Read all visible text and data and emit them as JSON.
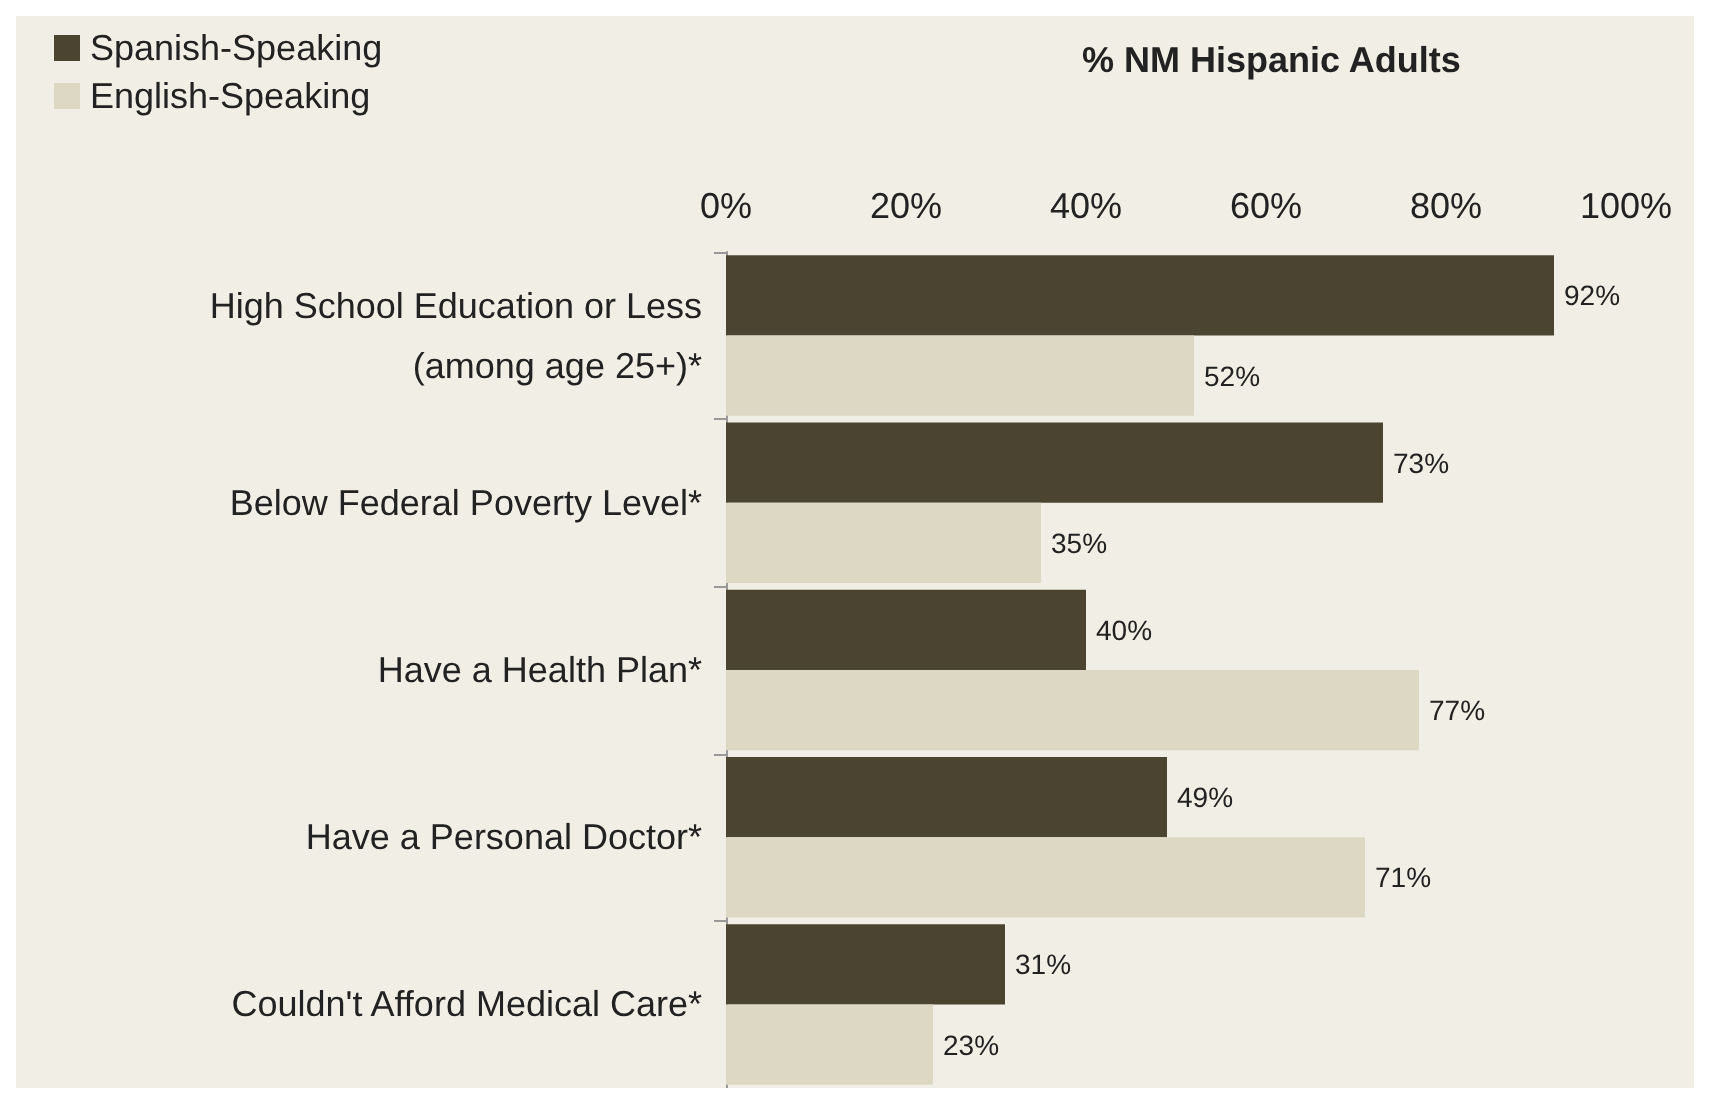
{
  "chart_data": {
    "type": "bar",
    "orientation": "horizontal",
    "title": "% NM Hispanic Adults",
    "categories": [
      "High School Education or Less\n(among age 25+)*",
      "Below Federal Poverty Level*",
      "Have a Health Plan*",
      "Have a Personal Doctor*",
      "Couldn't Afford Medical Care*"
    ],
    "series": [
      {
        "name": "Spanish-Speaking",
        "color": "#4a4430",
        "values": [
          92,
          73,
          40,
          49,
          31
        ],
        "value_labels": [
          "92%",
          "73%",
          "40%",
          "49%",
          "31%"
        ]
      },
      {
        "name": "English-Speaking",
        "color": "#ddd8c3",
        "values": [
          52,
          35,
          77,
          71,
          23
        ],
        "value_labels": [
          "52%",
          "35%",
          "77%",
          "71%",
          "23%"
        ]
      }
    ],
    "xlim": [
      0,
      100
    ],
    "xticks": [
      {
        "value": 0,
        "label": "0%"
      },
      {
        "value": 20,
        "label": "20%"
      },
      {
        "value": 40,
        "label": "40%"
      },
      {
        "value": 60,
        "label": "60%"
      },
      {
        "value": 80,
        "label": "80%"
      },
      {
        "value": 100,
        "label": "100%"
      }
    ],
    "grid": false,
    "legend": "top left"
  }
}
